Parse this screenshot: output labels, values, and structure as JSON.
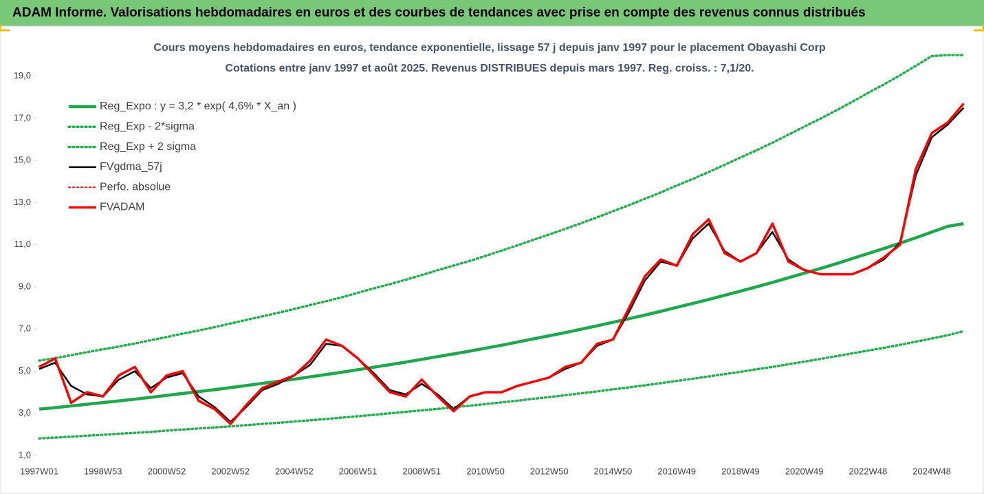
{
  "header": {
    "title": "ADAM Informe. Valorisations hebdomadaires en euros et des courbes de tendances avec prise en compte des revenus connus distribués"
  },
  "chart_data": {
    "type": "line",
    "title": "Cours moyens hebdomadaires en euros, tendance exponentielle, lissage 57 j depuis janv 1997  pour le placement Obayashi Corp",
    "subtitle": "Cotations entre janv 1997 et août 2025.  Revenus DISTRIBUES depuis mars 1997. Reg. croiss. : 7,1/20.",
    "categories": [
      "1997W01",
      null,
      null,
      null,
      "1998W53",
      null,
      null,
      null,
      "2000W52",
      null,
      null,
      null,
      "2002W52",
      null,
      null,
      null,
      "2004W52",
      null,
      null,
      null,
      "2006W51",
      null,
      null,
      null,
      "2008W51",
      null,
      null,
      null,
      "2010W50",
      null,
      null,
      null,
      "2012W50",
      null,
      null,
      null,
      "2014W50",
      null,
      null,
      null,
      "2016W49",
      null,
      null,
      null,
      "2018W49",
      null,
      null,
      null,
      "2020W49",
      null,
      null,
      null,
      "2022W48",
      null,
      null,
      null,
      "2024W48",
      null,
      null
    ],
    "ylim": [
      1,
      20
    ],
    "yticks": [
      {
        "value": 1,
        "label": "1,0"
      },
      {
        "value": 3,
        "label": "3,0"
      },
      {
        "value": 5,
        "label": "5,0"
      },
      {
        "value": 7,
        "label": "7,0"
      },
      {
        "value": 9,
        "label": "9,0"
      },
      {
        "value": 11,
        "label": "11,0"
      },
      {
        "value": 13,
        "label": "13,0"
      },
      {
        "value": 15,
        "label": "15,0"
      },
      {
        "value": 17,
        "label": "17,0"
      },
      {
        "value": 19,
        "label": "19,0"
      }
    ],
    "grid": false,
    "legend": "upper left",
    "series": [
      {
        "name": "Reg_Expo : y = 3,2 * exp( 4,6% *  X_an )",
        "color": "#1ea84b",
        "style": "solid",
        "width": 4.5,
        "values": [
          3.2,
          3.27,
          3.35,
          3.43,
          3.51,
          3.59,
          3.67,
          3.76,
          3.85,
          3.94,
          4.03,
          4.12,
          4.22,
          4.32,
          4.42,
          4.52,
          4.62,
          4.73,
          4.84,
          4.95,
          5.07,
          5.19,
          5.31,
          5.43,
          5.56,
          5.69,
          5.82,
          5.95,
          6.09,
          6.23,
          6.38,
          6.53,
          6.68,
          6.83,
          6.99,
          7.15,
          7.32,
          7.49,
          7.66,
          7.84,
          8.03,
          8.21,
          8.4,
          8.6,
          8.8,
          9.0,
          9.21,
          9.43,
          9.65,
          9.87,
          10.1,
          10.34,
          10.58,
          10.82,
          11.07,
          11.33,
          11.6,
          11.87,
          12.0
        ]
      },
      {
        "name": "Reg_Exp - 2*sigma",
        "color": "#22b04c",
        "style": "dotted",
        "width": 3.5,
        "values": [
          1.81,
          1.85,
          1.89,
          1.94,
          1.98,
          2.03,
          2.07,
          2.12,
          2.18,
          2.23,
          2.28,
          2.33,
          2.38,
          2.44,
          2.5,
          2.55,
          2.61,
          2.67,
          2.73,
          2.8,
          2.86,
          2.93,
          3.0,
          3.07,
          3.14,
          3.21,
          3.29,
          3.36,
          3.44,
          3.52,
          3.6,
          3.69,
          3.77,
          3.86,
          3.95,
          4.04,
          4.14,
          4.23,
          4.33,
          4.43,
          4.54,
          4.64,
          4.75,
          4.86,
          4.97,
          5.09,
          5.2,
          5.33,
          5.45,
          5.58,
          5.71,
          5.84,
          5.98,
          6.11,
          6.25,
          6.4,
          6.55,
          6.71,
          6.9
        ]
      },
      {
        "name": "Reg_Exp + 2 sigma",
        "color": "#22b04c",
        "style": "dotted",
        "width": 3.5,
        "values": [
          5.5,
          5.62,
          5.76,
          5.9,
          6.04,
          6.17,
          6.31,
          6.47,
          6.62,
          6.78,
          6.93,
          7.09,
          7.26,
          7.43,
          7.6,
          7.77,
          7.95,
          8.14,
          8.32,
          8.51,
          8.72,
          8.93,
          9.13,
          9.34,
          9.56,
          9.79,
          10.01,
          10.23,
          10.47,
          10.72,
          10.97,
          11.23,
          11.49,
          11.75,
          12.02,
          12.3,
          12.59,
          12.88,
          13.18,
          13.48,
          13.81,
          14.12,
          14.45,
          14.79,
          15.14,
          15.48,
          15.84,
          16.22,
          16.6,
          16.98,
          17.37,
          17.78,
          18.2,
          18.61,
          19.04,
          19.49,
          19.95,
          20,
          20
        ]
      },
      {
        "name": "FVgdma_57j",
        "color": "#000000",
        "style": "solid",
        "width": 2.5,
        "values": [
          5.1,
          5.4,
          4.3,
          3.9,
          3.8,
          4.6,
          5.0,
          4.2,
          4.7,
          4.9,
          3.8,
          3.3,
          2.6,
          3.3,
          4.1,
          4.4,
          4.8,
          5.3,
          6.3,
          6.2,
          5.6,
          4.9,
          4.1,
          3.9,
          4.4,
          3.9,
          3.2,
          3.8,
          4.0,
          4.0,
          4.3,
          4.5,
          4.7,
          5.1,
          5.4,
          6.2,
          6.5,
          7.8,
          9.3,
          10.2,
          10.0,
          11.3,
          12.0,
          10.7,
          10.2,
          10.6,
          11.6,
          10.3,
          9.8,
          9.6,
          9.6,
          9.6,
          9.9,
          10.3,
          11.1,
          14.3,
          16.1,
          16.7,
          17.5
        ]
      },
      {
        "name": "Perfo. absolue",
        "color": "#ff0000",
        "style": "dotted",
        "width": 2,
        "values": [
          5.2,
          5.6,
          3.5,
          4.0,
          3.8,
          4.8,
          5.2,
          4.0,
          4.8,
          5.0,
          3.6,
          3.2,
          2.5,
          3.4,
          4.2,
          4.5,
          4.8,
          5.5,
          6.5,
          6.2,
          5.6,
          4.8,
          4.0,
          3.8,
          4.6,
          3.8,
          3.1,
          3.8,
          4.0,
          4.0,
          4.3,
          4.5,
          4.7,
          5.2,
          5.4,
          6.3,
          6.5,
          8.0,
          9.5,
          10.3,
          10.0,
          11.5,
          12.2,
          10.6,
          10.2,
          10.6,
          12.0,
          10.2,
          9.8,
          9.6,
          9.6,
          9.6,
          9.9,
          10.4,
          11.0,
          14.6,
          16.3,
          16.8,
          17.7
        ]
      },
      {
        "name": "FVADAM",
        "color": "#ff0000",
        "style": "solid",
        "width": 3.5,
        "values": [
          5.2,
          5.6,
          3.5,
          4.0,
          3.8,
          4.8,
          5.2,
          4.0,
          4.8,
          5.0,
          3.6,
          3.2,
          2.5,
          3.4,
          4.2,
          4.5,
          4.8,
          5.5,
          6.5,
          6.2,
          5.6,
          4.8,
          4.0,
          3.8,
          4.6,
          3.8,
          3.1,
          3.8,
          4.0,
          4.0,
          4.3,
          4.5,
          4.7,
          5.2,
          5.4,
          6.3,
          6.5,
          8.0,
          9.5,
          10.3,
          10.0,
          11.5,
          12.2,
          10.6,
          10.2,
          10.6,
          12.0,
          10.2,
          9.8,
          9.6,
          9.6,
          9.6,
          9.9,
          10.4,
          11.0,
          14.6,
          16.3,
          16.8,
          17.7
        ]
      }
    ]
  }
}
